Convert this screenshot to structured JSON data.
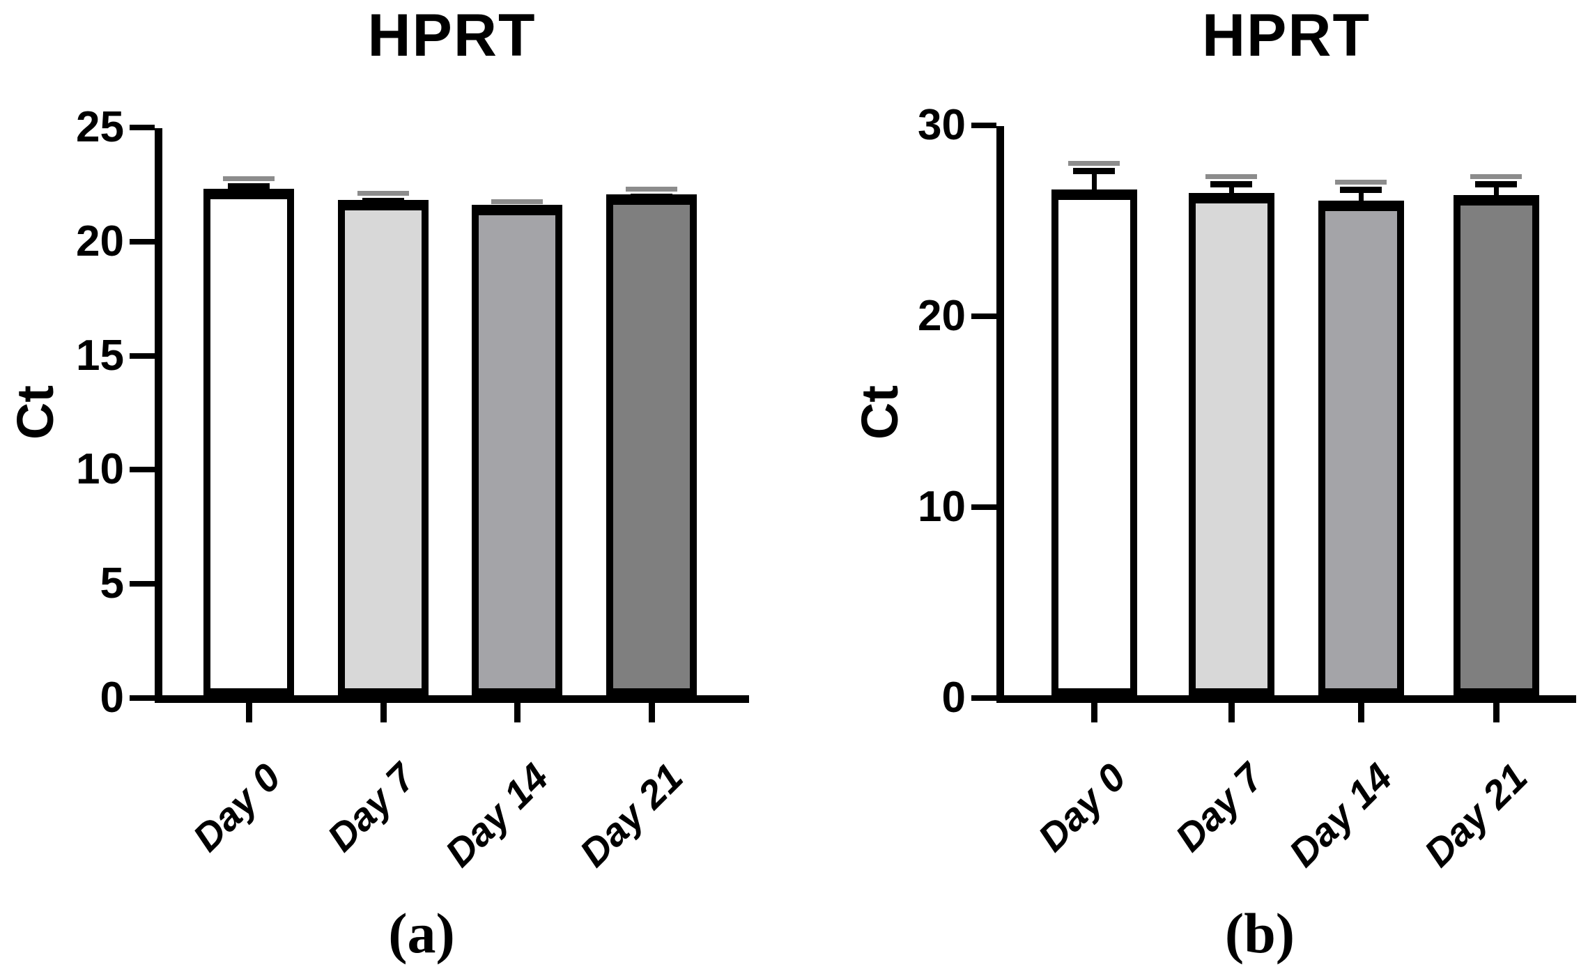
{
  "figure": {
    "background": "#ffffff",
    "text_color": "#000000"
  },
  "chart_data": [
    {
      "type": "bar",
      "panel": "a",
      "title": "HPRT",
      "ylabel": "Ct",
      "xlabel": "",
      "caption": "(a)",
      "categories": [
        "Day 0",
        "Day 7",
        "Day 14",
        "Day 21"
      ],
      "values": [
        22.2,
        21.7,
        21.5,
        21.95
      ],
      "errors_upper": [
        0.45,
        0.3,
        0.15,
        0.25
      ],
      "ylim": [
        0,
        25
      ],
      "yticks": [
        0,
        5,
        10,
        15,
        20,
        25
      ],
      "bar_fill_colors": [
        "#ffffff",
        "#d8d8d8",
        "#a4a4a8",
        "#7f7f7f"
      ],
      "bar_border_color": "#000000",
      "error_color": "#000000",
      "error_cap_gray": "#8c8c8c",
      "grid": false,
      "legend": "none"
    },
    {
      "type": "bar",
      "panel": "b",
      "title": "HPRT",
      "ylabel": "Ct",
      "xlabel": "",
      "caption": "(b)",
      "categories": [
        "Day 0",
        "Day 7",
        "Day 14",
        "Day 21"
      ],
      "values": [
        26.5,
        26.3,
        25.9,
        26.2
      ],
      "errors_upper": [
        1.4,
        0.9,
        1.0,
        1.0
      ],
      "ylim": [
        0,
        30
      ],
      "yticks": [
        0,
        10,
        20,
        30
      ],
      "bar_fill_colors": [
        "#ffffff",
        "#d8d8d8",
        "#a4a4a8",
        "#7f7f7f"
      ],
      "bar_border_color": "#000000",
      "error_color": "#000000",
      "error_cap_gray": "#8c8c8c",
      "grid": false,
      "legend": "none"
    }
  ]
}
